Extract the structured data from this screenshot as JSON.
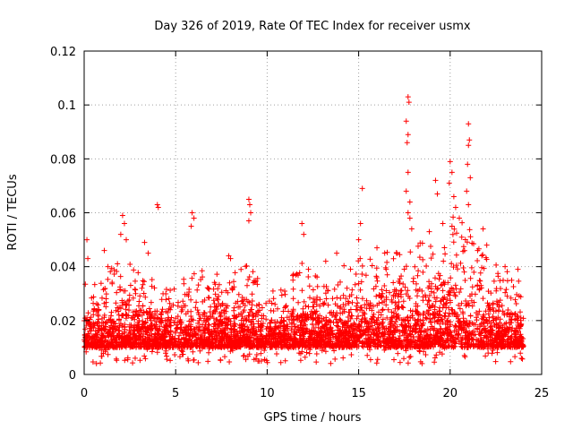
{
  "chart_data": {
    "type": "scatter",
    "title": "Day 326 of 2019, Rate Of TEC Index for receiver usmx",
    "xlabel": "GPS time / hours",
    "ylabel": "ROTI / TECUs",
    "xlim": [
      0,
      25
    ],
    "ylim": [
      0,
      0.12
    ],
    "xticks": [
      0,
      5,
      10,
      15,
      20,
      25
    ],
    "xtick_labels": [
      "0",
      "5",
      "10",
      "15",
      "20",
      "25"
    ],
    "yticks": [
      0,
      0.02,
      0.04,
      0.06,
      0.08,
      0.1,
      0.12
    ],
    "ytick_labels": [
      "0",
      "0.02",
      "0.04",
      "0.06",
      "0.08",
      "0.1",
      "0.12"
    ],
    "grid": true,
    "marker": "+",
    "color": "#ff0000",
    "spike_points": [
      {
        "x": 0.15,
        "y": 0.05
      },
      {
        "x": 0.2,
        "y": 0.043
      },
      {
        "x": 1.1,
        "y": 0.046
      },
      {
        "x": 1.3,
        "y": 0.04
      },
      {
        "x": 2.1,
        "y": 0.059
      },
      {
        "x": 2.2,
        "y": 0.056
      },
      {
        "x": 2.3,
        "y": 0.05
      },
      {
        "x": 2.0,
        "y": 0.052
      },
      {
        "x": 3.3,
        "y": 0.049
      },
      {
        "x": 3.5,
        "y": 0.045
      },
      {
        "x": 4.0,
        "y": 0.063
      },
      {
        "x": 4.05,
        "y": 0.062
      },
      {
        "x": 5.9,
        "y": 0.06
      },
      {
        "x": 6.0,
        "y": 0.058
      },
      {
        "x": 5.85,
        "y": 0.055
      },
      {
        "x": 7.9,
        "y": 0.044
      },
      {
        "x": 8.0,
        "y": 0.043
      },
      {
        "x": 9.0,
        "y": 0.065
      },
      {
        "x": 9.05,
        "y": 0.063
      },
      {
        "x": 9.1,
        "y": 0.06
      },
      {
        "x": 9.0,
        "y": 0.057
      },
      {
        "x": 11.9,
        "y": 0.056
      },
      {
        "x": 12.0,
        "y": 0.052
      },
      {
        "x": 13.2,
        "y": 0.042
      },
      {
        "x": 13.8,
        "y": 0.045
      },
      {
        "x": 15.2,
        "y": 0.069
      },
      {
        "x": 15.1,
        "y": 0.056
      },
      {
        "x": 15.0,
        "y": 0.05
      },
      {
        "x": 16.0,
        "y": 0.047
      },
      {
        "x": 17.7,
        "y": 0.103
      },
      {
        "x": 17.75,
        "y": 0.101
      },
      {
        "x": 17.6,
        "y": 0.094
      },
      {
        "x": 17.7,
        "y": 0.089
      },
      {
        "x": 17.65,
        "y": 0.086
      },
      {
        "x": 17.7,
        "y": 0.075
      },
      {
        "x": 17.6,
        "y": 0.068
      },
      {
        "x": 17.8,
        "y": 0.064
      },
      {
        "x": 17.7,
        "y": 0.06
      },
      {
        "x": 17.8,
        "y": 0.058
      },
      {
        "x": 17.9,
        "y": 0.054
      },
      {
        "x": 19.2,
        "y": 0.072
      },
      {
        "x": 19.3,
        "y": 0.067
      },
      {
        "x": 19.6,
        "y": 0.056
      },
      {
        "x": 20.0,
        "y": 0.079
      },
      {
        "x": 20.1,
        "y": 0.075
      },
      {
        "x": 19.95,
        "y": 0.071
      },
      {
        "x": 20.2,
        "y": 0.066
      },
      {
        "x": 20.3,
        "y": 0.062
      },
      {
        "x": 20.5,
        "y": 0.058
      },
      {
        "x": 20.1,
        "y": 0.055
      },
      {
        "x": 21.0,
        "y": 0.093
      },
      {
        "x": 21.05,
        "y": 0.087
      },
      {
        "x": 21.0,
        "y": 0.085
      },
      {
        "x": 20.95,
        "y": 0.078
      },
      {
        "x": 21.1,
        "y": 0.073
      },
      {
        "x": 20.9,
        "y": 0.068
      },
      {
        "x": 21.0,
        "y": 0.063
      },
      {
        "x": 21.8,
        "y": 0.054
      },
      {
        "x": 22.0,
        "y": 0.048
      },
      {
        "x": 21.5,
        "y": 0.046
      },
      {
        "x": 23.0,
        "y": 0.04
      },
      {
        "x": 23.7,
        "y": 0.039
      }
    ],
    "envelope": {
      "hours": [
        0,
        1,
        2,
        3,
        4,
        5,
        6,
        7,
        8,
        9,
        10,
        11,
        12,
        13,
        14,
        15,
        16,
        17,
        18,
        19,
        20,
        21,
        22,
        23,
        24
      ],
      "typical_max": [
        0.03,
        0.032,
        0.042,
        0.035,
        0.03,
        0.028,
        0.036,
        0.034,
        0.033,
        0.038,
        0.028,
        0.03,
        0.038,
        0.032,
        0.035,
        0.042,
        0.04,
        0.045,
        0.047,
        0.05,
        0.055,
        0.052,
        0.04,
        0.035,
        0.03
      ],
      "typical_min": 0.004
    }
  }
}
